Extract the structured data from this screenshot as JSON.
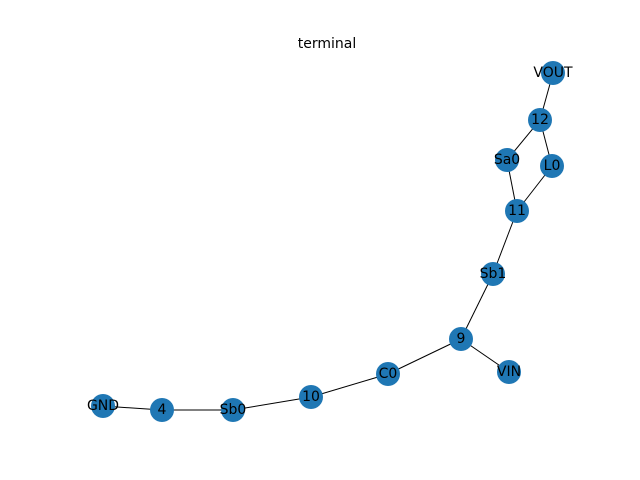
{
  "title": "terminal",
  "colors": {
    "node_fill": "#1f77b4",
    "edge": "#000000",
    "label": "#000000",
    "background": "#ffffff"
  },
  "nodes": [
    {
      "id": "VOUT",
      "label": "VOUT"
    },
    {
      "id": "12",
      "label": "12"
    },
    {
      "id": "Sa0",
      "label": "Sa0"
    },
    {
      "id": "L0",
      "label": "L0"
    },
    {
      "id": "11",
      "label": "11"
    },
    {
      "id": "Sb1",
      "label": "Sb1"
    },
    {
      "id": "9",
      "label": "9"
    },
    {
      "id": "VIN",
      "label": "VIN"
    },
    {
      "id": "C0",
      "label": "C0"
    },
    {
      "id": "10",
      "label": "10"
    },
    {
      "id": "Sb0",
      "label": "Sb0"
    },
    {
      "id": "4",
      "label": "4"
    },
    {
      "id": "GND",
      "label": "GND"
    }
  ],
  "edges": [
    [
      "VOUT",
      "12"
    ],
    [
      "12",
      "Sa0"
    ],
    [
      "12",
      "L0"
    ],
    [
      "Sa0",
      "11"
    ],
    [
      "L0",
      "11"
    ],
    [
      "11",
      "Sb1"
    ],
    [
      "Sb1",
      "9"
    ],
    [
      "9",
      "VIN"
    ],
    [
      "9",
      "C0"
    ],
    [
      "C0",
      "10"
    ],
    [
      "10",
      "Sb0"
    ],
    [
      "Sb0",
      "4"
    ],
    [
      "4",
      "GND"
    ]
  ]
}
